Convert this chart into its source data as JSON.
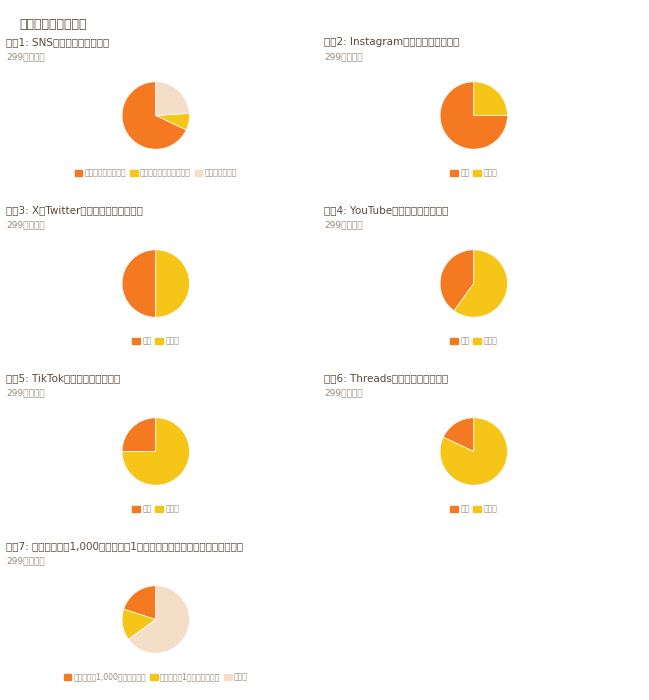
{
  "main_title": "設問ごとの回答分布",
  "charts": [
    {
      "title": "設問1: SNSアカウントについて",
      "subtitle": "299件の回答",
      "values": [
        68,
        8,
        24
      ],
      "labels": [
        "自社で運用している",
        "外部に運用を委託してる",
        "運用していない"
      ],
      "colors": [
        "#F47920",
        "#F5C518",
        "#F5DEC8"
      ],
      "startangle": 90
    },
    {
      "title": "設問2: Instagramの運用をしている？",
      "subtitle": "299件の回答",
      "values": [
        75,
        25
      ],
      "labels": [
        "はい",
        "いいえ"
      ],
      "colors": [
        "#F47920",
        "#F5C518"
      ],
      "startangle": 90
    },
    {
      "title": "設問3: X（Twitter）の運用をしている？",
      "subtitle": "299件の回答",
      "values": [
        50,
        50
      ],
      "labels": [
        "はい",
        "いいえ"
      ],
      "colors": [
        "#F47920",
        "#F5C518"
      ],
      "startangle": 90
    },
    {
      "title": "設問4: YouTubeの運用をしている？",
      "subtitle": "299件の回答",
      "values": [
        40,
        60
      ],
      "labels": [
        "はい",
        "いいえ"
      ],
      "colors": [
        "#F47920",
        "#F5C518"
      ],
      "startangle": 90
    },
    {
      "title": "設問5: TikTokの運用をしている？",
      "subtitle": "299件の回答",
      "values": [
        25,
        75
      ],
      "labels": [
        "はい",
        "いいえ"
      ],
      "colors": [
        "#F47920",
        "#F5C518"
      ],
      "startangle": 90
    },
    {
      "title": "設問6: Threadsの運用をしている？",
      "subtitle": "299件の回答",
      "values": [
        18,
        82
      ],
      "labels": [
        "はい",
        "いいえ"
      ],
      "colors": [
        "#F47920",
        "#F5C518"
      ],
      "startangle": 90
    },
    {
      "title": "設問7: フォロワーが1,000人、または1万人を超えているアカウントがある？",
      "subtitle": "299件の回答",
      "values": [
        20,
        15,
        65
      ],
      "labels": [
        "フォロワー1,000人超えてます",
        "フォロワー1万人超えてます",
        "いいえ"
      ],
      "colors": [
        "#F47920",
        "#F5C518",
        "#F5DEC8"
      ],
      "startangle": 90
    }
  ],
  "background_color": "#FFFFFF",
  "title_color": "#5a4a3a",
  "subtitle_color": "#9a8a7a"
}
